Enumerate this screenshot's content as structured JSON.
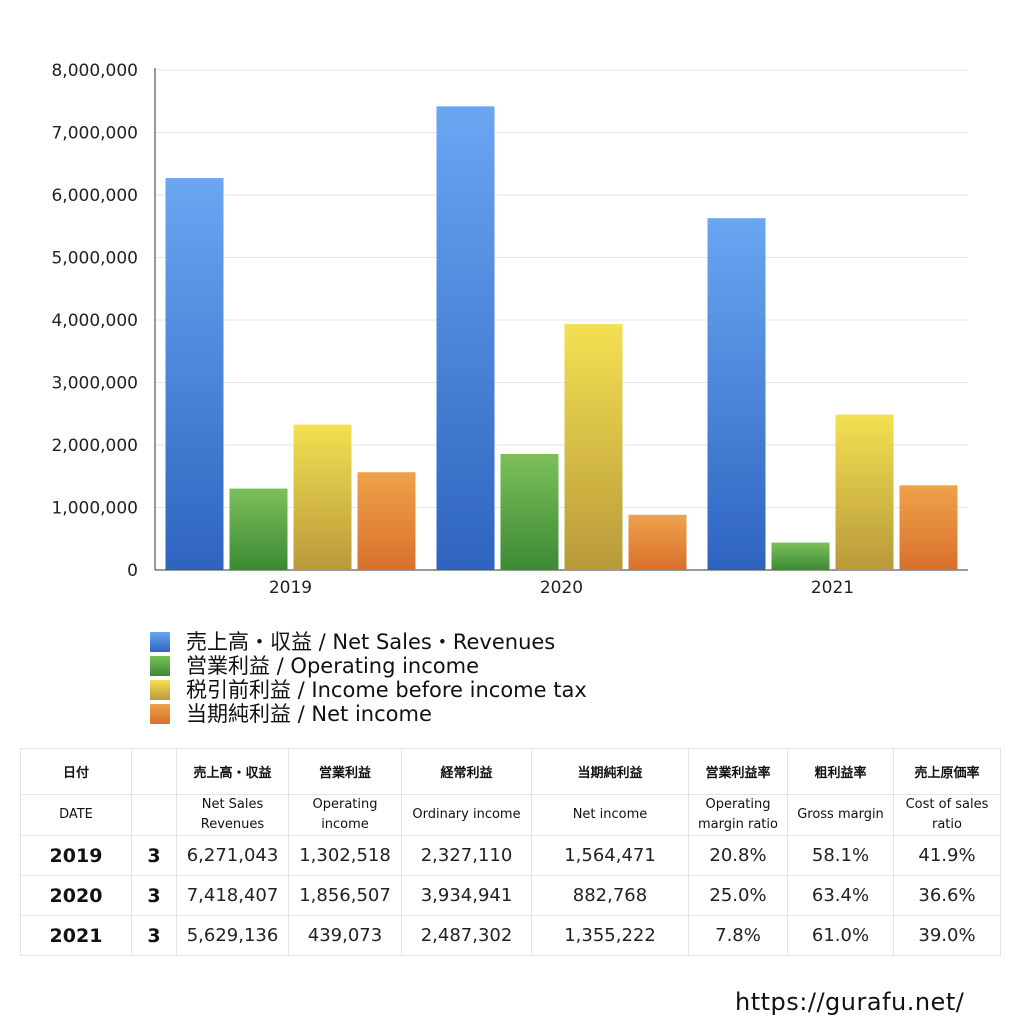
{
  "chart_data": {
    "type": "bar",
    "categories": [
      "2019",
      "2020",
      "2021"
    ],
    "ylim": [
      0,
      8000000
    ],
    "yticks": [
      0,
      1000000,
      2000000,
      3000000,
      4000000,
      5000000,
      6000000,
      7000000,
      8000000
    ],
    "ytick_labels": [
      "0",
      "1,000,000",
      "2,000,000",
      "3,000,000",
      "4,000,000",
      "5,000,000",
      "6,000,000",
      "7,000,000",
      "8,000,000"
    ],
    "grid": true,
    "legend_position": "bottom-left",
    "series": [
      {
        "name": "売上高・収益 / Net Sales・Revenues",
        "values": [
          6271043,
          7418407,
          5629136
        ],
        "color_top": "#6aa6f2",
        "color_bottom": "#2e64c0"
      },
      {
        "name": "営業利益 / Operating income",
        "values": [
          1302518,
          1856507,
          439073
        ],
        "color_top": "#7cc05a",
        "color_bottom": "#3b8a34"
      },
      {
        "name": "税引前利益 / Income before income tax",
        "values": [
          2327110,
          3934941,
          2487302
        ],
        "color_top": "#f4e052",
        "color_bottom": "#b89a3a"
      },
      {
        "name": "当期純利益 / Net income",
        "values": [
          1564471,
          882768,
          1355222
        ],
        "color_top": "#eea24a",
        "color_bottom": "#d8702c"
      }
    ]
  },
  "table": {
    "header_jp": [
      "日付",
      "",
      "売上高・収益",
      "営業利益",
      "経常利益",
      "当期純利益",
      "営業利益率",
      "粗利益率",
      "売上原価率"
    ],
    "header_en": [
      "DATE",
      "",
      "Net Sales\nRevenues",
      "Operating\nincome",
      "Ordinary income",
      "Net income",
      "Operating\nmargin ratio",
      "Gross margin",
      "Cost of sales\nratio"
    ],
    "rows": [
      [
        "2019",
        "3",
        "6,271,043",
        "1,302,518",
        "2,327,110",
        "1,564,471",
        "20.8%",
        "58.1%",
        "41.9%"
      ],
      [
        "2020",
        "3",
        "7,418,407",
        "1,856,507",
        "3,934,941",
        "882,768",
        "25.0%",
        "63.4%",
        "36.6%"
      ],
      [
        "2021",
        "3",
        "5,629,136",
        "439,073",
        "2,487,302",
        "1,355,222",
        "7.8%",
        "61.0%",
        "39.0%"
      ]
    ]
  },
  "site_url": "https://gurafu.net/"
}
